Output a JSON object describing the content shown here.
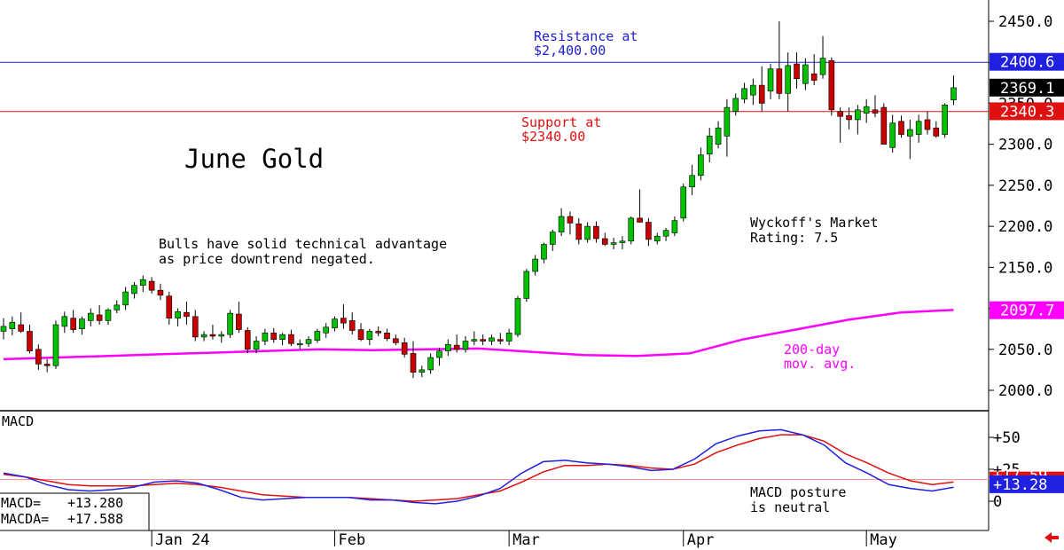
{
  "chart_data": [
    {
      "type": "candlestick",
      "title": "June Gold",
      "ylim": [
        1980,
        2475
      ],
      "y_ticks": [
        "2450.0",
        "2400.0",
        "2350.0",
        "2300.0",
        "2250.0",
        "2200.0",
        "2150.0",
        "2100.0",
        "2050.0",
        "2000.0"
      ],
      "y_tick_values": [
        2450,
        2400,
        2350,
        2300,
        2250,
        2200,
        2150,
        2100,
        2050,
        2000
      ],
      "x_labels": [
        "Jan 24",
        "Feb",
        "Mar",
        "Apr",
        "May"
      ],
      "x_label_index": [
        17,
        38,
        58,
        78,
        99
      ],
      "candles": [
        {
          "o": 2072,
          "h": 2088,
          "l": 2062,
          "c": 2078
        },
        {
          "o": 2075,
          "h": 2090,
          "l": 2067,
          "c": 2083
        },
        {
          "o": 2080,
          "h": 2095,
          "l": 2070,
          "c": 2072
        },
        {
          "o": 2072,
          "h": 2080,
          "l": 2045,
          "c": 2048
        },
        {
          "o": 2050,
          "h": 2056,
          "l": 2025,
          "c": 2032
        },
        {
          "o": 2032,
          "h": 2038,
          "l": 2022,
          "c": 2030
        },
        {
          "o": 2030,
          "h": 2085,
          "l": 2026,
          "c": 2080
        },
        {
          "o": 2078,
          "h": 2096,
          "l": 2070,
          "c": 2090
        },
        {
          "o": 2088,
          "h": 2098,
          "l": 2070,
          "c": 2074
        },
        {
          "o": 2075,
          "h": 2090,
          "l": 2068,
          "c": 2087
        },
        {
          "o": 2085,
          "h": 2100,
          "l": 2078,
          "c": 2094
        },
        {
          "o": 2092,
          "h": 2104,
          "l": 2080,
          "c": 2085
        },
        {
          "o": 2085,
          "h": 2100,
          "l": 2080,
          "c": 2098
        },
        {
          "o": 2098,
          "h": 2110,
          "l": 2094,
          "c": 2104
        },
        {
          "o": 2104,
          "h": 2126,
          "l": 2098,
          "c": 2120
        },
        {
          "o": 2118,
          "h": 2132,
          "l": 2112,
          "c": 2128
        },
        {
          "o": 2128,
          "h": 2140,
          "l": 2120,
          "c": 2135
        },
        {
          "o": 2133,
          "h": 2138,
          "l": 2118,
          "c": 2122
        },
        {
          "o": 2122,
          "h": 2130,
          "l": 2110,
          "c": 2116
        },
        {
          "o": 2115,
          "h": 2120,
          "l": 2080,
          "c": 2088
        },
        {
          "o": 2088,
          "h": 2100,
          "l": 2078,
          "c": 2096
        },
        {
          "o": 2095,
          "h": 2108,
          "l": 2080,
          "c": 2090
        },
        {
          "o": 2090,
          "h": 2098,
          "l": 2060,
          "c": 2065
        },
        {
          "o": 2065,
          "h": 2072,
          "l": 2060,
          "c": 2068
        },
        {
          "o": 2068,
          "h": 2080,
          "l": 2062,
          "c": 2066
        },
        {
          "o": 2066,
          "h": 2072,
          "l": 2058,
          "c": 2068
        },
        {
          "o": 2068,
          "h": 2098,
          "l": 2064,
          "c": 2094
        },
        {
          "o": 2093,
          "h": 2108,
          "l": 2070,
          "c": 2074
        },
        {
          "o": 2073,
          "h": 2077,
          "l": 2045,
          "c": 2050
        },
        {
          "o": 2050,
          "h": 2066,
          "l": 2045,
          "c": 2060
        },
        {
          "o": 2060,
          "h": 2075,
          "l": 2055,
          "c": 2070
        },
        {
          "o": 2070,
          "h": 2076,
          "l": 2058,
          "c": 2062
        },
        {
          "o": 2062,
          "h": 2070,
          "l": 2055,
          "c": 2068
        },
        {
          "o": 2068,
          "h": 2074,
          "l": 2054,
          "c": 2057
        },
        {
          "o": 2057,
          "h": 2062,
          "l": 2050,
          "c": 2057
        },
        {
          "o": 2057,
          "h": 2066,
          "l": 2053,
          "c": 2062
        },
        {
          "o": 2061,
          "h": 2075,
          "l": 2058,
          "c": 2072
        },
        {
          "o": 2070,
          "h": 2082,
          "l": 2064,
          "c": 2077
        },
        {
          "o": 2076,
          "h": 2090,
          "l": 2072,
          "c": 2087
        },
        {
          "o": 2088,
          "h": 2105,
          "l": 2075,
          "c": 2082
        },
        {
          "o": 2085,
          "h": 2095,
          "l": 2068,
          "c": 2073
        },
        {
          "o": 2074,
          "h": 2082,
          "l": 2060,
          "c": 2062
        },
        {
          "o": 2062,
          "h": 2075,
          "l": 2055,
          "c": 2072
        },
        {
          "o": 2072,
          "h": 2078,
          "l": 2066,
          "c": 2070
        },
        {
          "o": 2070,
          "h": 2075,
          "l": 2060,
          "c": 2063
        },
        {
          "o": 2063,
          "h": 2068,
          "l": 2055,
          "c": 2058
        },
        {
          "o": 2058,
          "h": 2064,
          "l": 2040,
          "c": 2044
        },
        {
          "o": 2045,
          "h": 2060,
          "l": 2015,
          "c": 2022
        },
        {
          "o": 2022,
          "h": 2030,
          "l": 2016,
          "c": 2025
        },
        {
          "o": 2025,
          "h": 2045,
          "l": 2020,
          "c": 2040
        },
        {
          "o": 2040,
          "h": 2052,
          "l": 2030,
          "c": 2048
        },
        {
          "o": 2048,
          "h": 2062,
          "l": 2042,
          "c": 2056
        },
        {
          "o": 2055,
          "h": 2068,
          "l": 2046,
          "c": 2050
        },
        {
          "o": 2050,
          "h": 2066,
          "l": 2046,
          "c": 2060
        },
        {
          "o": 2060,
          "h": 2072,
          "l": 2055,
          "c": 2062
        },
        {
          "o": 2062,
          "h": 2068,
          "l": 2055,
          "c": 2060
        },
        {
          "o": 2060,
          "h": 2068,
          "l": 2055,
          "c": 2064
        },
        {
          "o": 2062,
          "h": 2070,
          "l": 2056,
          "c": 2060
        },
        {
          "o": 2060,
          "h": 2075,
          "l": 2055,
          "c": 2070
        },
        {
          "o": 2068,
          "h": 2115,
          "l": 2065,
          "c": 2112
        },
        {
          "o": 2112,
          "h": 2148,
          "l": 2108,
          "c": 2145
        },
        {
          "o": 2145,
          "h": 2165,
          "l": 2140,
          "c": 2160
        },
        {
          "o": 2160,
          "h": 2180,
          "l": 2155,
          "c": 2178
        },
        {
          "o": 2178,
          "h": 2196,
          "l": 2170,
          "c": 2193
        },
        {
          "o": 2193,
          "h": 2222,
          "l": 2188,
          "c": 2212
        },
        {
          "o": 2212,
          "h": 2218,
          "l": 2190,
          "c": 2204
        },
        {
          "o": 2203,
          "h": 2210,
          "l": 2178,
          "c": 2184
        },
        {
          "o": 2184,
          "h": 2205,
          "l": 2180,
          "c": 2200
        },
        {
          "o": 2200,
          "h": 2206,
          "l": 2180,
          "c": 2185
        },
        {
          "o": 2185,
          "h": 2192,
          "l": 2176,
          "c": 2178
        },
        {
          "o": 2178,
          "h": 2186,
          "l": 2172,
          "c": 2180
        },
        {
          "o": 2180,
          "h": 2188,
          "l": 2172,
          "c": 2182
        },
        {
          "o": 2182,
          "h": 2212,
          "l": 2178,
          "c": 2210
        },
        {
          "o": 2210,
          "h": 2245,
          "l": 2205,
          "c": 2205
        },
        {
          "o": 2205,
          "h": 2210,
          "l": 2176,
          "c": 2184
        },
        {
          "o": 2182,
          "h": 2192,
          "l": 2178,
          "c": 2188
        },
        {
          "o": 2188,
          "h": 2198,
          "l": 2182,
          "c": 2195
        },
        {
          "o": 2192,
          "h": 2212,
          "l": 2188,
          "c": 2207
        },
        {
          "o": 2210,
          "h": 2252,
          "l": 2206,
          "c": 2248
        },
        {
          "o": 2248,
          "h": 2275,
          "l": 2238,
          "c": 2262
        },
        {
          "o": 2262,
          "h": 2296,
          "l": 2256,
          "c": 2287
        },
        {
          "o": 2288,
          "h": 2320,
          "l": 2278,
          "c": 2310
        },
        {
          "o": 2300,
          "h": 2328,
          "l": 2295,
          "c": 2320
        },
        {
          "o": 2310,
          "h": 2355,
          "l": 2285,
          "c": 2345
        },
        {
          "o": 2340,
          "h": 2362,
          "l": 2335,
          "c": 2356
        },
        {
          "o": 2355,
          "h": 2375,
          "l": 2350,
          "c": 2368
        },
        {
          "o": 2360,
          "h": 2380,
          "l": 2348,
          "c": 2372
        },
        {
          "o": 2372,
          "h": 2395,
          "l": 2340,
          "c": 2350
        },
        {
          "o": 2365,
          "h": 2398,
          "l": 2355,
          "c": 2392
        },
        {
          "o": 2392,
          "h": 2450,
          "l": 2355,
          "c": 2362
        },
        {
          "o": 2362,
          "h": 2412,
          "l": 2340,
          "c": 2396
        },
        {
          "o": 2398,
          "h": 2412,
          "l": 2368,
          "c": 2380
        },
        {
          "o": 2374,
          "h": 2405,
          "l": 2366,
          "c": 2397
        },
        {
          "o": 2386,
          "h": 2410,
          "l": 2372,
          "c": 2378
        },
        {
          "o": 2385,
          "h": 2432,
          "l": 2380,
          "c": 2405
        },
        {
          "o": 2402,
          "h": 2406,
          "l": 2335,
          "c": 2342
        },
        {
          "o": 2340,
          "h": 2345,
          "l": 2302,
          "c": 2334
        },
        {
          "o": 2335,
          "h": 2345,
          "l": 2318,
          "c": 2330
        },
        {
          "o": 2330,
          "h": 2348,
          "l": 2312,
          "c": 2342
        },
        {
          "o": 2338,
          "h": 2355,
          "l": 2326,
          "c": 2346
        },
        {
          "o": 2342,
          "h": 2360,
          "l": 2333,
          "c": 2338
        },
        {
          "o": 2345,
          "h": 2350,
          "l": 2300,
          "c": 2300
        },
        {
          "o": 2296,
          "h": 2336,
          "l": 2290,
          "c": 2326
        },
        {
          "o": 2328,
          "h": 2335,
          "l": 2308,
          "c": 2312
        },
        {
          "o": 2310,
          "h": 2330,
          "l": 2282,
          "c": 2318
        },
        {
          "o": 2312,
          "h": 2336,
          "l": 2302,
          "c": 2328
        },
        {
          "o": 2330,
          "h": 2340,
          "l": 2312,
          "c": 2318
        },
        {
          "o": 2320,
          "h": 2328,
          "l": 2308,
          "c": 2310
        },
        {
          "o": 2312,
          "h": 2350,
          "l": 2308,
          "c": 2348
        },
        {
          "o": 2354,
          "h": 2384,
          "l": 2348,
          "c": 2369
        }
      ],
      "ma200": [
        2038,
        2040,
        2042,
        2044,
        2046,
        2048,
        2050,
        2049,
        2050,
        2051,
        2047,
        2043,
        2042,
        2045,
        2062,
        2074,
        2086,
        2095,
        2098
      ],
      "ma200_label": "200-day\nmov. avg.",
      "resistance": {
        "value": 2400,
        "label_line1": "Resistance at",
        "label_line2": "$2,400.00"
      },
      "support": {
        "value": 2340,
        "label_line1": "Support at",
        "label_line2": "$2340.00"
      },
      "price_tags": [
        {
          "label": "2400.6",
          "value": 2400.6,
          "style": "blue"
        },
        {
          "label": "2369.1",
          "value": 2369.1,
          "style": "black"
        },
        {
          "label": "2340.3",
          "value": 2340.3,
          "style": "red"
        },
        {
          "label": "2097.7",
          "value": 2097.7,
          "style": "magenta"
        }
      ],
      "annotations": {
        "bulls_line1": "Bulls have solid technical advantage",
        "bulls_line2": "as price downtrend negated.",
        "rating_line1": "Wyckoff's Market",
        "rating_line2": "Rating: 7.5"
      },
      "colors": {
        "up": "#00c000",
        "down": "#c80000",
        "resistance": "#2020d0",
        "support": "#e01010",
        "ma": "#ff00ff"
      }
    },
    {
      "type": "line",
      "title": "MACD",
      "ylim": [
        -6,
        65
      ],
      "y_ticks": [
        "+50",
        "+25",
        "0"
      ],
      "y_tick_values": [
        50,
        25,
        0
      ],
      "series": [
        {
          "name": "MACD",
          "color": "#2020e0",
          "values": [
            22,
            19,
            13,
            9,
            8,
            9,
            11,
            15,
            16,
            14,
            9,
            3,
            1,
            2,
            3,
            3,
            3,
            1,
            1,
            -1,
            -2,
            0,
            4,
            10,
            22,
            31,
            32,
            30,
            29,
            27,
            24,
            25,
            33,
            45,
            51,
            55,
            56,
            52,
            44,
            30,
            22,
            13,
            10,
            8,
            11
          ]
        },
        {
          "name": "MACDA",
          "color": "#e01010",
          "values": [
            21,
            19,
            16,
            13,
            12,
            12,
            12,
            13,
            14,
            13,
            11,
            8,
            5,
            4,
            3,
            3,
            3,
            2,
            1,
            0,
            1,
            2,
            5,
            8,
            15,
            23,
            28,
            28,
            29,
            28,
            26,
            25,
            29,
            38,
            44,
            49,
            52,
            52,
            47,
            37,
            30,
            22,
            16,
            13,
            15
          ]
        }
      ],
      "reference_line": 17,
      "readout": {
        "macd_label": "MACD=",
        "macd_value": "+13.280",
        "macda_label": "MACDA=",
        "macda_value": "+17.588"
      },
      "tag_hidden": "+17.59",
      "tag_value": "+13.28",
      "note_line1": "MACD posture",
      "note_line2": "is neutral"
    }
  ]
}
